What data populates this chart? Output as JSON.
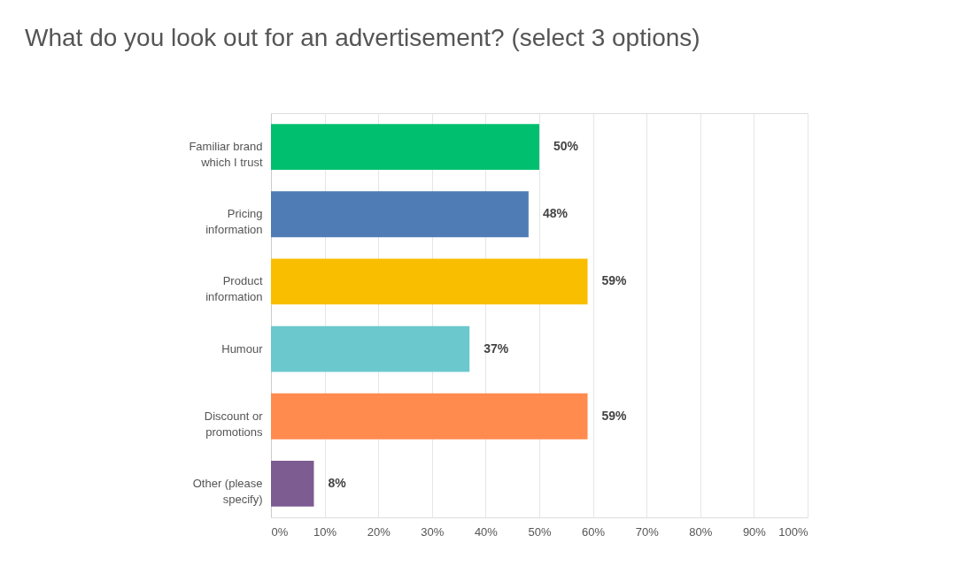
{
  "chart_data": {
    "type": "bar",
    "orientation": "horizontal",
    "title": "What do you look out for an advertisement? (select 3 options)",
    "categories": [
      "Familiar brand\nwhich I trust",
      "Pricing\ninformation",
      "Product\ninformation",
      "Humour",
      "Discount or\npromotions",
      "Other (please\nspecify)"
    ],
    "values": [
      50,
      48,
      59,
      37,
      59,
      8
    ],
    "colors": [
      "#00bf6f",
      "#507cb6",
      "#f9be00",
      "#6bc8cd",
      "#ff8b4f",
      "#7d5c91"
    ],
    "value_labels": [
      "50%",
      "48%",
      "59%",
      "37%",
      "59%",
      "8%"
    ],
    "xlim": [
      0,
      100
    ],
    "xticks": [
      {
        "value": 0,
        "label": "0%"
      },
      {
        "value": 10,
        "label": "10%"
      },
      {
        "value": 20,
        "label": "20%"
      },
      {
        "value": 30,
        "label": "30%"
      },
      {
        "value": 40,
        "label": "40%"
      },
      {
        "value": 50,
        "label": "50%"
      },
      {
        "value": 60,
        "label": "60%"
      },
      {
        "value": 70,
        "label": "70%"
      },
      {
        "value": 80,
        "label": "80%"
      },
      {
        "value": 90,
        "label": "90%"
      },
      {
        "value": 100,
        "label": "100%"
      }
    ],
    "grid": "x",
    "legend": false
  }
}
